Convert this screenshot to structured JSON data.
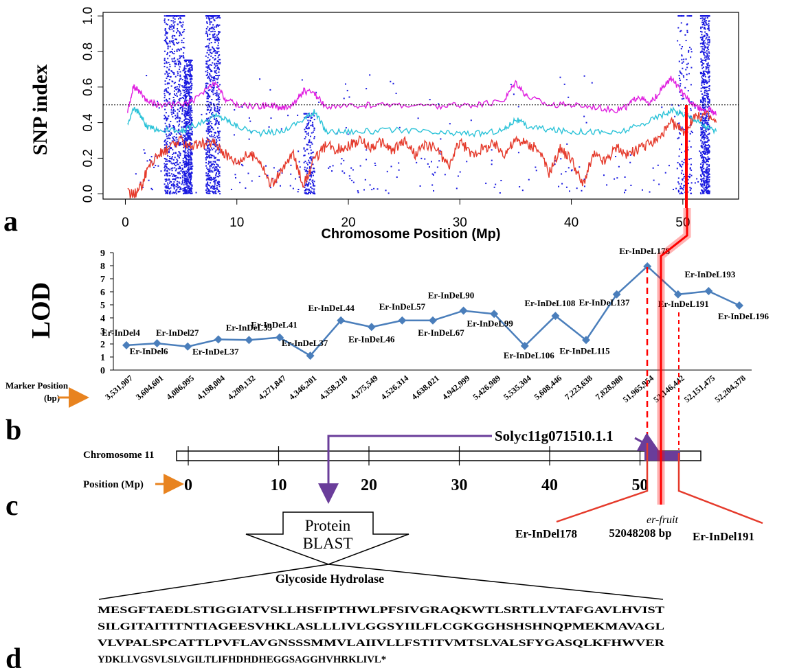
{
  "panels": {
    "a": "a",
    "b": "b",
    "c": "c",
    "d": "d"
  },
  "colors": {
    "magenta": "#e01fe0",
    "cyan": "#2cc3d8",
    "red": "#e53a2b",
    "dots": "#1a1ae0",
    "lod_line": "#4a7ebb",
    "arrow_orange": "#e8831f",
    "purple": "#6a3d9a",
    "highlight_red": "#ff0000"
  },
  "chart_data": [
    {
      "type": "scatter",
      "panel": "a",
      "title": "",
      "xlabel": "Chromosome Position (Mp)",
      "ylabel": "SNP index",
      "xlim": [
        -2,
        55
      ],
      "ylim": [
        -0.03,
        1.02
      ],
      "x_ticks": [
        0,
        10,
        20,
        30,
        40,
        50
      ],
      "y_ticks": [
        "0.0",
        "0.2",
        "0.4",
        "0.6",
        "0.8",
        "1.0"
      ],
      "y_tick_values": [
        0.0,
        0.2,
        0.4,
        0.6,
        0.8,
        1.0
      ],
      "threshold": 0.5,
      "dot_columns": [
        {
          "x0": 3.5,
          "x1": 5.3,
          "y0": 0.0,
          "y1": 1.0,
          "dense": true
        },
        {
          "x0": 5.3,
          "x1": 6.0,
          "y0": 0.0,
          "y1": 0.75,
          "dense": true
        },
        {
          "x0": 7.2,
          "x1": 8.5,
          "y0": 0.0,
          "y1": 1.0,
          "dense": true
        },
        {
          "x0": 16.0,
          "x1": 17.0,
          "y0": 0.0,
          "y1": 0.45,
          "dense": false
        },
        {
          "x0": 49.5,
          "x1": 50.8,
          "y0": 0.0,
          "y1": 1.0,
          "dense": false
        },
        {
          "x0": 51.6,
          "x1": 52.4,
          "y0": 0.0,
          "y1": 1.0,
          "dense": true
        }
      ],
      "series": [
        {
          "name": "",
          "color": "#e01fe0",
          "x": [
            0.2,
            0.7,
            1.2,
            2.0,
            3.0,
            5.0,
            6.0,
            8.0,
            9.0,
            10.0,
            12.0,
            13.0,
            14.0,
            15.0,
            16.0,
            17.0,
            18.0,
            20.0,
            22.0,
            25.0,
            28.0,
            30.0,
            32.0,
            34.0,
            35.0,
            36.0,
            38.0,
            40.0,
            42.0,
            44.0,
            45.0,
            46.0,
            47.0,
            48.0,
            49.0,
            50.0,
            50.7,
            51.5,
            52.5,
            53.0
          ],
          "y": [
            0.45,
            0.6,
            0.58,
            0.52,
            0.5,
            0.5,
            0.52,
            0.62,
            0.53,
            0.5,
            0.49,
            0.5,
            0.48,
            0.5,
            0.58,
            0.56,
            0.49,
            0.49,
            0.5,
            0.5,
            0.49,
            0.5,
            0.5,
            0.53,
            0.63,
            0.55,
            0.5,
            0.5,
            0.49,
            0.47,
            0.49,
            0.55,
            0.5,
            0.58,
            0.65,
            0.56,
            0.52,
            0.48,
            0.47,
            0.44
          ]
        },
        {
          "name": "",
          "color": "#2cc3d8",
          "x": [
            0.2,
            0.8,
            1.3,
            2.0,
            3.0,
            5.0,
            6.0,
            8.0,
            9.0,
            10.0,
            12.0,
            14.0,
            16.0,
            17.0,
            18.0,
            20.0,
            22.0,
            25.0,
            28.0,
            30.0,
            32.0,
            34.0,
            35.0,
            36.0,
            38.0,
            40.0,
            42.0,
            44.0,
            46.0,
            48.0,
            49.0,
            50.0,
            51.0,
            52.0,
            53.0
          ],
          "y": [
            0.4,
            0.48,
            0.45,
            0.37,
            0.36,
            0.35,
            0.38,
            0.44,
            0.42,
            0.38,
            0.34,
            0.35,
            0.42,
            0.46,
            0.35,
            0.35,
            0.35,
            0.36,
            0.34,
            0.34,
            0.34,
            0.36,
            0.42,
            0.38,
            0.36,
            0.35,
            0.35,
            0.34,
            0.38,
            0.44,
            0.47,
            0.45,
            0.42,
            0.38,
            0.35
          ]
        },
        {
          "name": "",
          "color": "#e53a2b",
          "x": [
            0.2,
            1.0,
            1.5,
            2.0,
            3.0,
            3.8,
            5.0,
            6.0,
            7.0,
            8.0,
            9.0,
            10.0,
            11.0,
            12.0,
            13.0,
            14.0,
            15.0,
            16.0,
            17.0,
            18.0,
            19.0,
            20.0,
            21.0,
            22.0,
            23.0,
            24.0,
            25.0,
            26.0,
            27.0,
            28.0,
            29.0,
            30.0,
            31.0,
            32.0,
            33.0,
            34.0,
            35.0,
            36.0,
            37.0,
            38.0,
            39.0,
            40.0,
            41.0,
            42.0,
            43.0,
            44.0,
            45.0,
            46.0,
            47.0,
            48.0,
            49.0,
            50.0,
            51.0,
            52.0,
            53.0
          ],
          "y": [
            0.0,
            0.0,
            0.05,
            0.15,
            0.22,
            0.25,
            0.3,
            0.27,
            0.28,
            0.29,
            0.22,
            0.18,
            0.22,
            0.2,
            0.05,
            0.12,
            0.23,
            0.05,
            0.2,
            0.27,
            0.25,
            0.27,
            0.3,
            0.26,
            0.29,
            0.24,
            0.3,
            0.22,
            0.28,
            0.25,
            0.15,
            0.3,
            0.22,
            0.25,
            0.28,
            0.23,
            0.3,
            0.28,
            0.25,
            0.12,
            0.25,
            0.2,
            0.05,
            0.22,
            0.18,
            0.26,
            0.22,
            0.25,
            0.28,
            0.32,
            0.4,
            0.35,
            0.42,
            0.45,
            0.4
          ]
        }
      ]
    },
    {
      "type": "line",
      "panel": "b",
      "ylabel": "LOD",
      "ylim": [
        0,
        9
      ],
      "y_ticks": [
        "0",
        "1",
        "2",
        "3",
        "4",
        "5",
        "6",
        "7",
        "8",
        "9"
      ],
      "categories_label": "Marker Position (bp)",
      "categories": [
        "3,531,907",
        "3,604,601",
        "4,086,995",
        "4,198,004",
        "4,209,132",
        "4,271,847",
        "4,346,201",
        "4,358,218",
        "4,375,549",
        "4,526,314",
        "4,638,021",
        "4,942,999",
        "5,426,989",
        "5,535,304",
        "5,608,446",
        "7,223,638",
        "7,828,980",
        "51,965,954",
        "52,146,442",
        "52,151,475",
        "52,204,378"
      ],
      "markers": [
        "Er-InDel4",
        "Er-InDel6",
        "Er-InDel27",
        "Er-InDeL37",
        "Er-InDeL33",
        "Er-InDeL41",
        "Er-InDeL37",
        "Er-InDeL44",
        "Er-InDeL46",
        "Er-InDeL57",
        "Er-InDeL67",
        "Er-InDeL90",
        "Er-InDeL99",
        "Er-InDeL106",
        "Er-InDeL108",
        "Er-InDeL115",
        "Er-InDeL137",
        "Er-InDeL178",
        "Er-InDeL191",
        "Er-InDeL193",
        "Er-InDeL196"
      ],
      "values": [
        1.9,
        2.05,
        1.8,
        2.35,
        2.3,
        2.5,
        1.1,
        3.8,
        3.3,
        3.8,
        3.8,
        4.55,
        4.3,
        1.85,
        4.15,
        2.3,
        5.8,
        7.95,
        5.8,
        6.05,
        4.95
      ]
    }
  ],
  "panel_c": {
    "chromosome_label": "Chromosome 11",
    "position_label": "Position (Mp)",
    "ticks": [
      "0",
      "10",
      "20",
      "30",
      "40",
      "50"
    ],
    "gene": "Solyc11g071510.1.1",
    "left_marker": "Er-InDel178",
    "right_marker": "Er-InDel191",
    "locus_name": "er-fruit",
    "locus_pos": "52048208 bp",
    "arrow_text_1": "Protein",
    "arrow_text_2": "BLAST"
  },
  "panel_d": {
    "title": "Glycoside Hydrolase",
    "sequence": [
      "MESGFTAEDLSTIGGIATVSLLHSFIPTHWLPFSIVGRAQKWTLSRTLLVTAFGAVLHVIST",
      "SILGITAITITNTIAGEESVHKLASLLLIVLGGSYIILFLCGKGGHSHSHNQPMEKMAVAGL",
      "VLVPALSPCATTLPVFLAVGNSSSMMVLAIIVLLFSTITVMTSLVALSFYGASQLKFHWVER",
      "YDKLLVGSVLSLVGILTLIFHDHDHEGGSAGGHVHRKLIVL*"
    ]
  }
}
